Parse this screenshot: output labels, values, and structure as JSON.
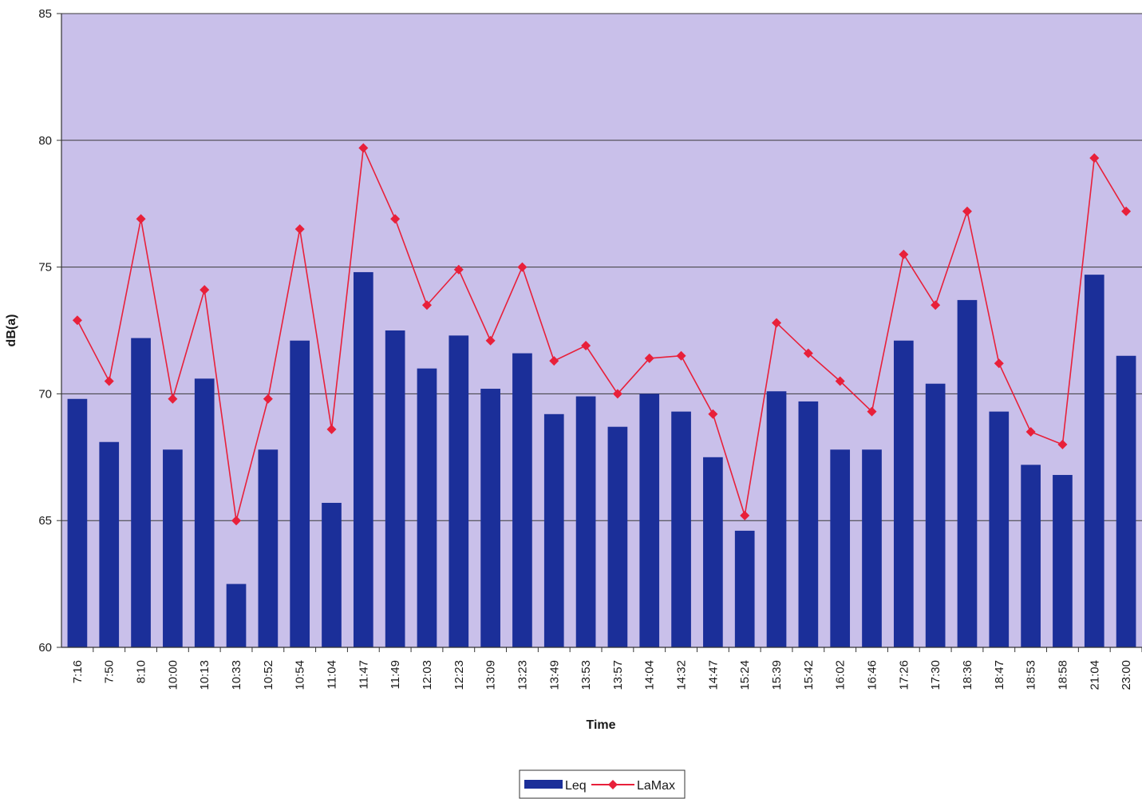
{
  "chart_data": {
    "type": "bar",
    "title": "",
    "xlabel": "Time",
    "ylabel": "dB(a)",
    "ylim": [
      60,
      85
    ],
    "yticks": [
      "60",
      "65",
      "70",
      "75",
      "80",
      "85"
    ],
    "grid": true,
    "legend_position": "bottom-center",
    "categories": [
      "7:16",
      "7:50",
      "8:10",
      "10:00",
      "10:13",
      "10:33",
      "10:52",
      "10:54",
      "11:04",
      "11:47",
      "11:49",
      "12:03",
      "12:23",
      "13:09",
      "13:23",
      "13:49",
      "13:53",
      "13:57",
      "14:04",
      "14:32",
      "14:47",
      "15:24",
      "15:39",
      "15:42",
      "16:02",
      "16:46",
      "17:26",
      "17:30",
      "18:36",
      "18:47",
      "18:53",
      "18:58",
      "21:04",
      "23:00"
    ],
    "series": [
      {
        "name": "Leq",
        "type": "bar",
        "color": "#1b2f99",
        "values": [
          69.8,
          68.1,
          72.2,
          67.8,
          70.6,
          62.5,
          67.8,
          72.1,
          65.7,
          74.8,
          72.5,
          71.0,
          72.3,
          70.2,
          71.6,
          69.2,
          69.9,
          68.7,
          70.0,
          69.3,
          67.5,
          64.6,
          70.1,
          69.7,
          67.8,
          67.8,
          72.1,
          70.4,
          73.7,
          69.3,
          67.2,
          66.8,
          74.7,
          71.5
        ]
      },
      {
        "name": "LaMax",
        "type": "line",
        "color": "#e8203a",
        "values": [
          72.9,
          70.5,
          76.9,
          69.8,
          74.1,
          65.0,
          69.8,
          76.5,
          68.6,
          79.7,
          76.9,
          73.5,
          74.9,
          72.1,
          75.0,
          71.3,
          71.9,
          70.0,
          71.4,
          71.5,
          69.2,
          65.2,
          72.8,
          71.6,
          70.5,
          69.3,
          75.5,
          73.5,
          77.2,
          71.2,
          68.5,
          68.0,
          79.3,
          77.2
        ]
      }
    ]
  }
}
